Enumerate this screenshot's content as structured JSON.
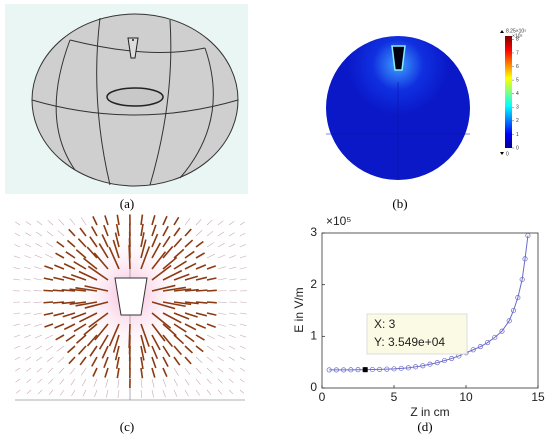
{
  "captions": [
    "(a)",
    "(b)",
    "(c)",
    "(d)"
  ],
  "colorbar": {
    "max_label": "8.25×10⁵",
    "exponent": "×10⁵",
    "min_label": "0",
    "ticks": [
      0,
      1,
      2,
      3,
      4,
      5,
      6,
      7,
      8
    ],
    "lim": [
      0,
      8.25
    ]
  },
  "chart_data": {
    "type": "line",
    "x": [
      0.5,
      1,
      1.5,
      2,
      2.5,
      3,
      3.5,
      4,
      4.5,
      5,
      5.5,
      6,
      6.5,
      7,
      7.5,
      8,
      8.5,
      9,
      9.5,
      10,
      10.5,
      11,
      11.5,
      12,
      12.5,
      13,
      13.3,
      13.6,
      13.9,
      14.1,
      14.3
    ],
    "series": [
      {
        "color": "#6b6bc9",
        "values": [
          0.35,
          0.35,
          0.35,
          0.352,
          0.354,
          0.355,
          0.358,
          0.36,
          0.365,
          0.37,
          0.38,
          0.39,
          0.41,
          0.43,
          0.46,
          0.49,
          0.53,
          0.57,
          0.62,
          0.68,
          0.74,
          0.8,
          0.88,
          0.98,
          1.1,
          1.3,
          1.5,
          1.75,
          2.1,
          2.5,
          2.95
        ]
      }
    ],
    "xlim": [
      0,
      15
    ],
    "ylim": [
      0,
      3
    ],
    "xticks": [
      0,
      5,
      10,
      15
    ],
    "yticks": [
      0,
      1,
      2,
      3
    ],
    "y_multiplier": "×10⁵",
    "xlabel": "Z in cm",
    "ylabel": "E in V/m",
    "datatip": {
      "x": 3,
      "y": 0.3549,
      "x_text": "X: 3",
      "y_text": "Y: 3.549e+04"
    }
  }
}
